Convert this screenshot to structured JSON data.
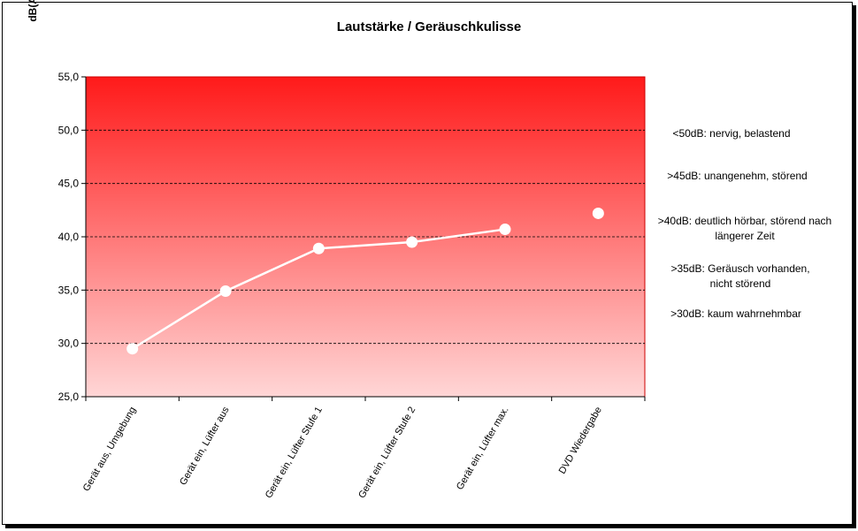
{
  "chart_data": {
    "type": "line",
    "title": "Lautstärke / Geräuschkulisse",
    "ylabel": "dB(A)",
    "xlabel": "",
    "ylim": [
      25,
      55
    ],
    "ytick_step": 5,
    "yticks": [
      "25,0",
      "30,0",
      "35,0",
      "40,0",
      "45,0",
      "50,0",
      "55,0"
    ],
    "categories": [
      "Gerät aus, Umgebung",
      "Gerät ein, Lüfter aus",
      "Gerät ein, Lüfter Stufe 1",
      "Gerät ein, Lüfter Stufe 2",
      "Gerät ein, Lüfter max.",
      "DVD Wiedergabe"
    ],
    "series": [
      {
        "values": [
          29.5,
          34.9,
          38.9,
          39.5,
          40.7,
          42.2
        ],
        "connected_points": 5
      }
    ],
    "grid": "dashed horizontal",
    "plot_gradient": {
      "top": "#ff1a1a",
      "bottom": "#ffd6d6"
    },
    "line_color": "#ffffff",
    "annotations": [
      [
        "<50dB: nervig, belastend"
      ],
      [
        ">45dB: unangenehm, störend"
      ],
      [
        ">40dB: deutlich hörbar, störend nach",
        "längerer Zeit"
      ],
      [
        ">35dB: Geräusch vorhanden,",
        "nicht störend"
      ],
      [
        ">30dB: kaum wahrnehmbar"
      ]
    ]
  }
}
